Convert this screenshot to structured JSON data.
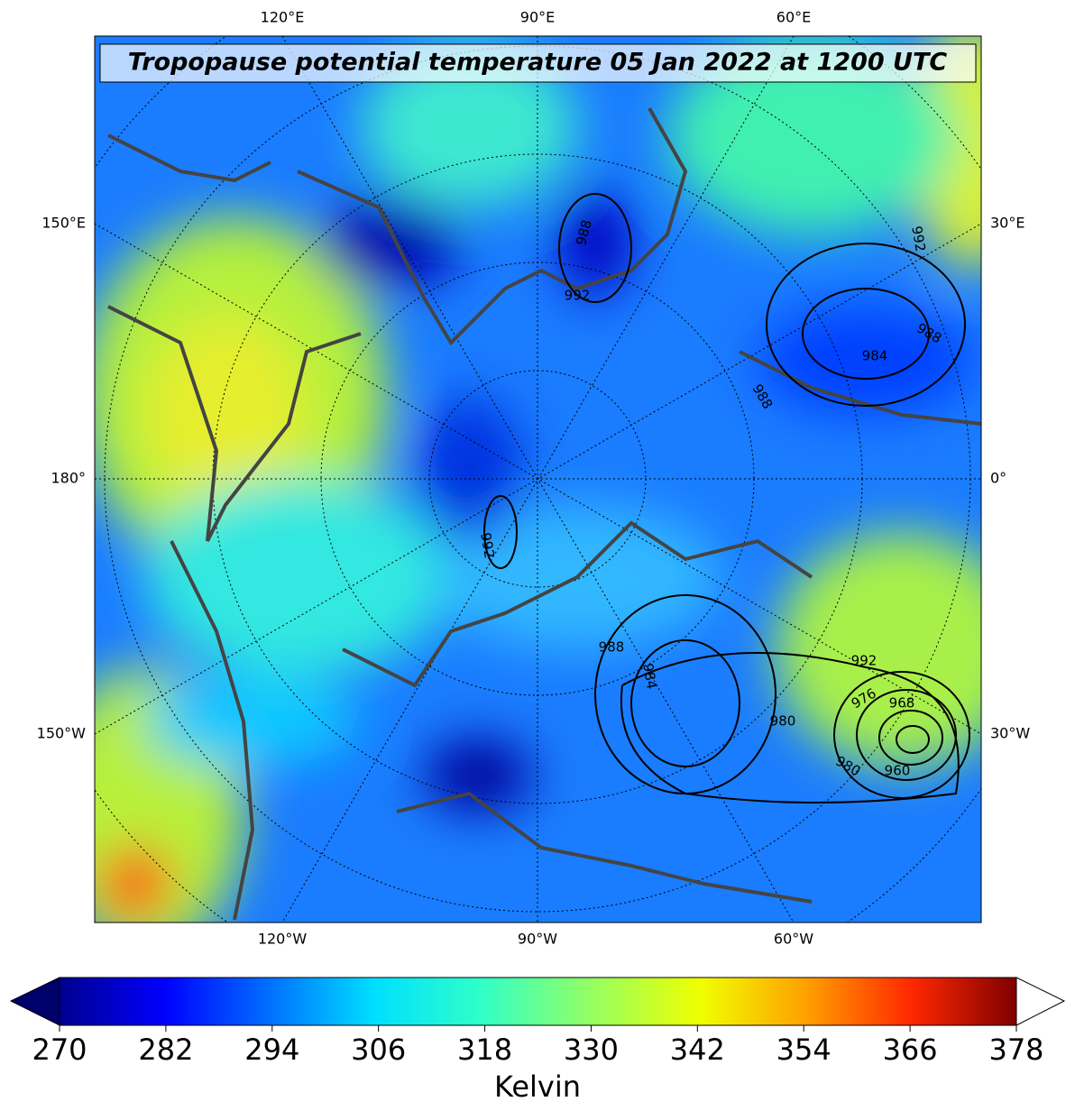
{
  "title": "Tropopause potential temperature 05 Jan 2022 at 1200 UTC",
  "lon_labels": {
    "top": [
      "120°E",
      "90°E",
      "60°E"
    ],
    "bottom": [
      "120°W",
      "90°W",
      "60°W"
    ],
    "left": [
      "150°E",
      "180°",
      "150°W"
    ],
    "right": [
      "30°E",
      "0°",
      "30°W"
    ]
  },
  "isobar_labels": [
    988,
    992,
    992,
    988,
    984,
    988,
    992,
    988,
    984,
    992,
    980,
    976,
    968,
    980,
    960
  ],
  "colorbar": {
    "lim": [
      270,
      378
    ],
    "ticks": [
      270,
      282,
      294,
      306,
      318,
      330,
      342,
      354,
      366,
      378
    ],
    "label": "Kelvin",
    "extend": "both"
  }
}
